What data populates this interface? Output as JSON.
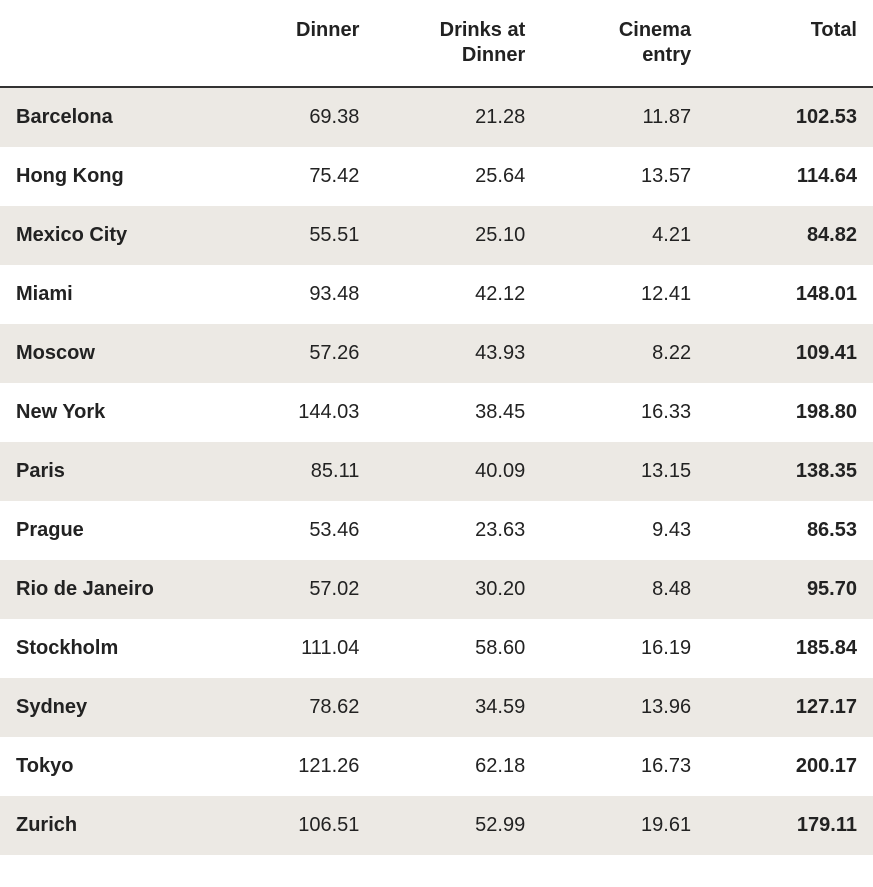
{
  "table": {
    "type": "table",
    "background_color": "#ffffff",
    "stripe_color": "#ece9e4",
    "header_border_color": "#333333",
    "header_border_width": 2,
    "text_color": "#222222",
    "header_fontsize": 20,
    "body_fontsize": 20,
    "font_family": "Segoe UI, Helvetica Neue, Arial, sans-serif",
    "cell_padding_v": 18,
    "cell_padding_h": 16,
    "column_widths_pct": [
      24,
      19,
      19,
      19,
      19
    ],
    "columns": [
      {
        "key": "city",
        "label": "",
        "align": "left",
        "bold_header": false,
        "bold_body": true
      },
      {
        "key": "dinner",
        "label": "Dinner",
        "align": "right",
        "bold_header": true,
        "bold_body": false
      },
      {
        "key": "drinks",
        "label": "Drinks at Dinner",
        "align": "right",
        "bold_header": true,
        "bold_body": false
      },
      {
        "key": "cinema",
        "label": "Cinema entry",
        "align": "right",
        "bold_header": true,
        "bold_body": false
      },
      {
        "key": "total",
        "label": "Total",
        "align": "right",
        "bold_header": true,
        "bold_body": true
      }
    ],
    "rows": [
      {
        "city": "Barcelona",
        "dinner": "69.38",
        "drinks": "21.28",
        "cinema": "11.87",
        "total": "102.53"
      },
      {
        "city": "Hong Kong",
        "dinner": "75.42",
        "drinks": "25.64",
        "cinema": "13.57",
        "total": "114.64"
      },
      {
        "city": "Mexico City",
        "dinner": "55.51",
        "drinks": "25.10",
        "cinema": "4.21",
        "total": "84.82"
      },
      {
        "city": "Miami",
        "dinner": "93.48",
        "drinks": "42.12",
        "cinema": "12.41",
        "total": "148.01"
      },
      {
        "city": "Moscow",
        "dinner": "57.26",
        "drinks": "43.93",
        "cinema": "8.22",
        "total": "109.41"
      },
      {
        "city": "New York",
        "dinner": "144.03",
        "drinks": "38.45",
        "cinema": "16.33",
        "total": "198.80"
      },
      {
        "city": "Paris",
        "dinner": "85.11",
        "drinks": "40.09",
        "cinema": "13.15",
        "total": "138.35"
      },
      {
        "city": "Prague",
        "dinner": "53.46",
        "drinks": "23.63",
        "cinema": "9.43",
        "total": "86.53"
      },
      {
        "city": "Rio de Janeiro",
        "dinner": "57.02",
        "drinks": "30.20",
        "cinema": "8.48",
        "total": "95.70"
      },
      {
        "city": "Stockholm",
        "dinner": "111.04",
        "drinks": "58.60",
        "cinema": "16.19",
        "total": "185.84"
      },
      {
        "city": "Sydney",
        "dinner": "78.62",
        "drinks": "34.59",
        "cinema": "13.96",
        "total": "127.17"
      },
      {
        "city": "Tokyo",
        "dinner": "121.26",
        "drinks": "62.18",
        "cinema": "16.73",
        "total": "200.17"
      },
      {
        "city": "Zurich",
        "dinner": "106.51",
        "drinks": "52.99",
        "cinema": "19.61",
        "total": "179.11"
      }
    ]
  }
}
